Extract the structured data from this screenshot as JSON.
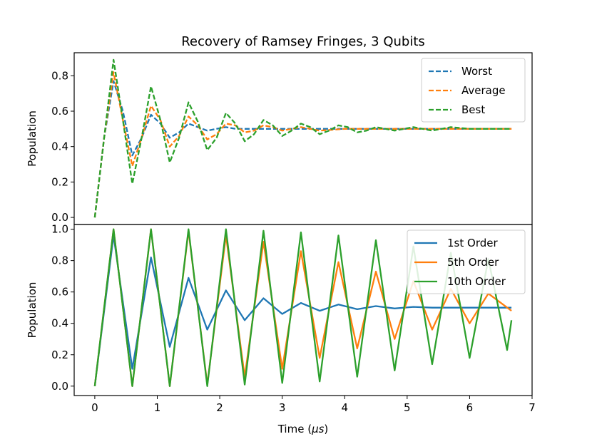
{
  "chart_data": [
    {
      "type": "line",
      "title": "Recovery of Ramsey Fringes, 3 Qubits",
      "ylabel": "Population",
      "xlabel": "",
      "xlim": [
        -0.33,
        7.0
      ],
      "ylim": [
        -0.04,
        0.93
      ],
      "yticks": [
        0.0,
        0.2,
        0.4,
        0.6,
        0.8
      ],
      "ytick_labels": [
        "0.0",
        "0.2",
        "0.4",
        "0.6",
        "0.8"
      ],
      "legend_position": "top-right",
      "line_style": "dashed",
      "series": [
        {
          "name": "Worst",
          "color": "#1f77b4",
          "x": [
            0,
            0.15,
            0.3,
            0.45,
            0.6,
            0.75,
            0.9,
            1.05,
            1.2,
            1.35,
            1.5,
            1.65,
            1.8,
            1.95,
            2.1,
            2.25,
            2.4,
            2.7,
            3.0,
            3.5,
            4.0,
            5.0,
            6.0,
            6.67
          ],
          "y": [
            0.0,
            0.45,
            0.77,
            0.6,
            0.35,
            0.45,
            0.58,
            0.53,
            0.45,
            0.48,
            0.53,
            0.51,
            0.49,
            0.5,
            0.51,
            0.5,
            0.5,
            0.5,
            0.5,
            0.5,
            0.5,
            0.5,
            0.5,
            0.5
          ]
        },
        {
          "name": "Average",
          "color": "#ff7f0e",
          "x": [
            0,
            0.15,
            0.3,
            0.45,
            0.6,
            0.75,
            0.9,
            1.05,
            1.2,
            1.35,
            1.5,
            1.65,
            1.8,
            1.95,
            2.1,
            2.25,
            2.4,
            2.55,
            2.7,
            2.85,
            3.0,
            3.3,
            3.6,
            4.0,
            4.5,
            5.0,
            6.0,
            6.67
          ],
          "y": [
            0.0,
            0.45,
            0.82,
            0.55,
            0.29,
            0.45,
            0.63,
            0.55,
            0.4,
            0.46,
            0.57,
            0.52,
            0.44,
            0.47,
            0.53,
            0.52,
            0.48,
            0.49,
            0.52,
            0.51,
            0.49,
            0.51,
            0.49,
            0.5,
            0.5,
            0.5,
            0.5,
            0.5
          ]
        },
        {
          "name": "Best",
          "color": "#2ca02c",
          "x": [
            0,
            0.15,
            0.3,
            0.45,
            0.6,
            0.75,
            0.9,
            1.05,
            1.2,
            1.35,
            1.5,
            1.65,
            1.8,
            1.95,
            2.1,
            2.25,
            2.4,
            2.55,
            2.7,
            2.85,
            3.0,
            3.15,
            3.3,
            3.45,
            3.6,
            3.75,
            3.9,
            4.05,
            4.2,
            4.35,
            4.5,
            4.65,
            4.8,
            4.95,
            5.1,
            5.4,
            5.7,
            6.0,
            6.3,
            6.67
          ],
          "y": [
            0.0,
            0.45,
            0.89,
            0.55,
            0.19,
            0.45,
            0.74,
            0.55,
            0.31,
            0.45,
            0.65,
            0.54,
            0.38,
            0.45,
            0.59,
            0.53,
            0.43,
            0.47,
            0.55,
            0.52,
            0.46,
            0.49,
            0.53,
            0.51,
            0.47,
            0.49,
            0.52,
            0.51,
            0.48,
            0.49,
            0.51,
            0.5,
            0.49,
            0.5,
            0.51,
            0.49,
            0.51,
            0.5,
            0.5,
            0.5
          ]
        }
      ]
    },
    {
      "type": "line",
      "title": "",
      "ylabel": "Population",
      "xlabel": "Time (μs)",
      "xlim": [
        -0.33,
        7.0
      ],
      "ylim": [
        -0.06,
        1.03
      ],
      "xticks": [
        0,
        1,
        2,
        3,
        4,
        5,
        6,
        7
      ],
      "xtick_labels": [
        "0",
        "1",
        "2",
        "3",
        "4",
        "5",
        "6",
        "7"
      ],
      "yticks": [
        0.0,
        0.2,
        0.4,
        0.6,
        0.8,
        1.0
      ],
      "ytick_labels": [
        "0.0",
        "0.2",
        "0.4",
        "0.6",
        "0.8",
        "1.0"
      ],
      "legend_position": "top-right",
      "line_style": "solid",
      "series": [
        {
          "name": "1st Order",
          "color": "#1f77b4",
          "x": [
            0,
            0.3,
            0.6,
            0.9,
            1.2,
            1.5,
            1.8,
            2.1,
            2.4,
            2.7,
            3.0,
            3.3,
            3.6,
            3.9,
            4.2,
            4.5,
            4.8,
            5.1,
            5.4,
            5.7,
            6.0,
            6.3,
            6.67
          ],
          "y": [
            0.0,
            0.96,
            0.11,
            0.82,
            0.25,
            0.69,
            0.36,
            0.61,
            0.42,
            0.56,
            0.46,
            0.53,
            0.48,
            0.52,
            0.49,
            0.51,
            0.495,
            0.505,
            0.5,
            0.5,
            0.5,
            0.5,
            0.5
          ]
        },
        {
          "name": "5th Order",
          "color": "#ff7f0e",
          "x": [
            0,
            0.3,
            0.6,
            0.9,
            1.2,
            1.5,
            1.8,
            2.1,
            2.4,
            2.7,
            3.0,
            3.3,
            3.6,
            3.9,
            4.2,
            4.5,
            4.8,
            5.1,
            5.4,
            5.7,
            6.0,
            6.3,
            6.67
          ],
          "y": [
            0.0,
            1.0,
            0.0,
            1.0,
            0.0,
            0.99,
            0.01,
            0.96,
            0.06,
            0.92,
            0.11,
            0.86,
            0.18,
            0.79,
            0.24,
            0.73,
            0.3,
            0.67,
            0.36,
            0.62,
            0.4,
            0.59,
            0.48
          ]
        },
        {
          "name": "10th Order",
          "color": "#2ca02c",
          "x": [
            0,
            0.3,
            0.6,
            0.9,
            1.2,
            1.5,
            1.8,
            2.1,
            2.4,
            2.7,
            3.0,
            3.3,
            3.6,
            3.9,
            4.2,
            4.5,
            4.8,
            5.1,
            5.4,
            5.7,
            6.0,
            6.3,
            6.6,
            6.67
          ],
          "y": [
            0.0,
            1.0,
            0.0,
            1.0,
            0.0,
            1.0,
            0.0,
            1.0,
            0.01,
            0.99,
            0.02,
            0.98,
            0.03,
            0.96,
            0.06,
            0.93,
            0.1,
            0.89,
            0.14,
            0.85,
            0.18,
            0.81,
            0.23,
            0.42
          ]
        }
      ]
    }
  ]
}
